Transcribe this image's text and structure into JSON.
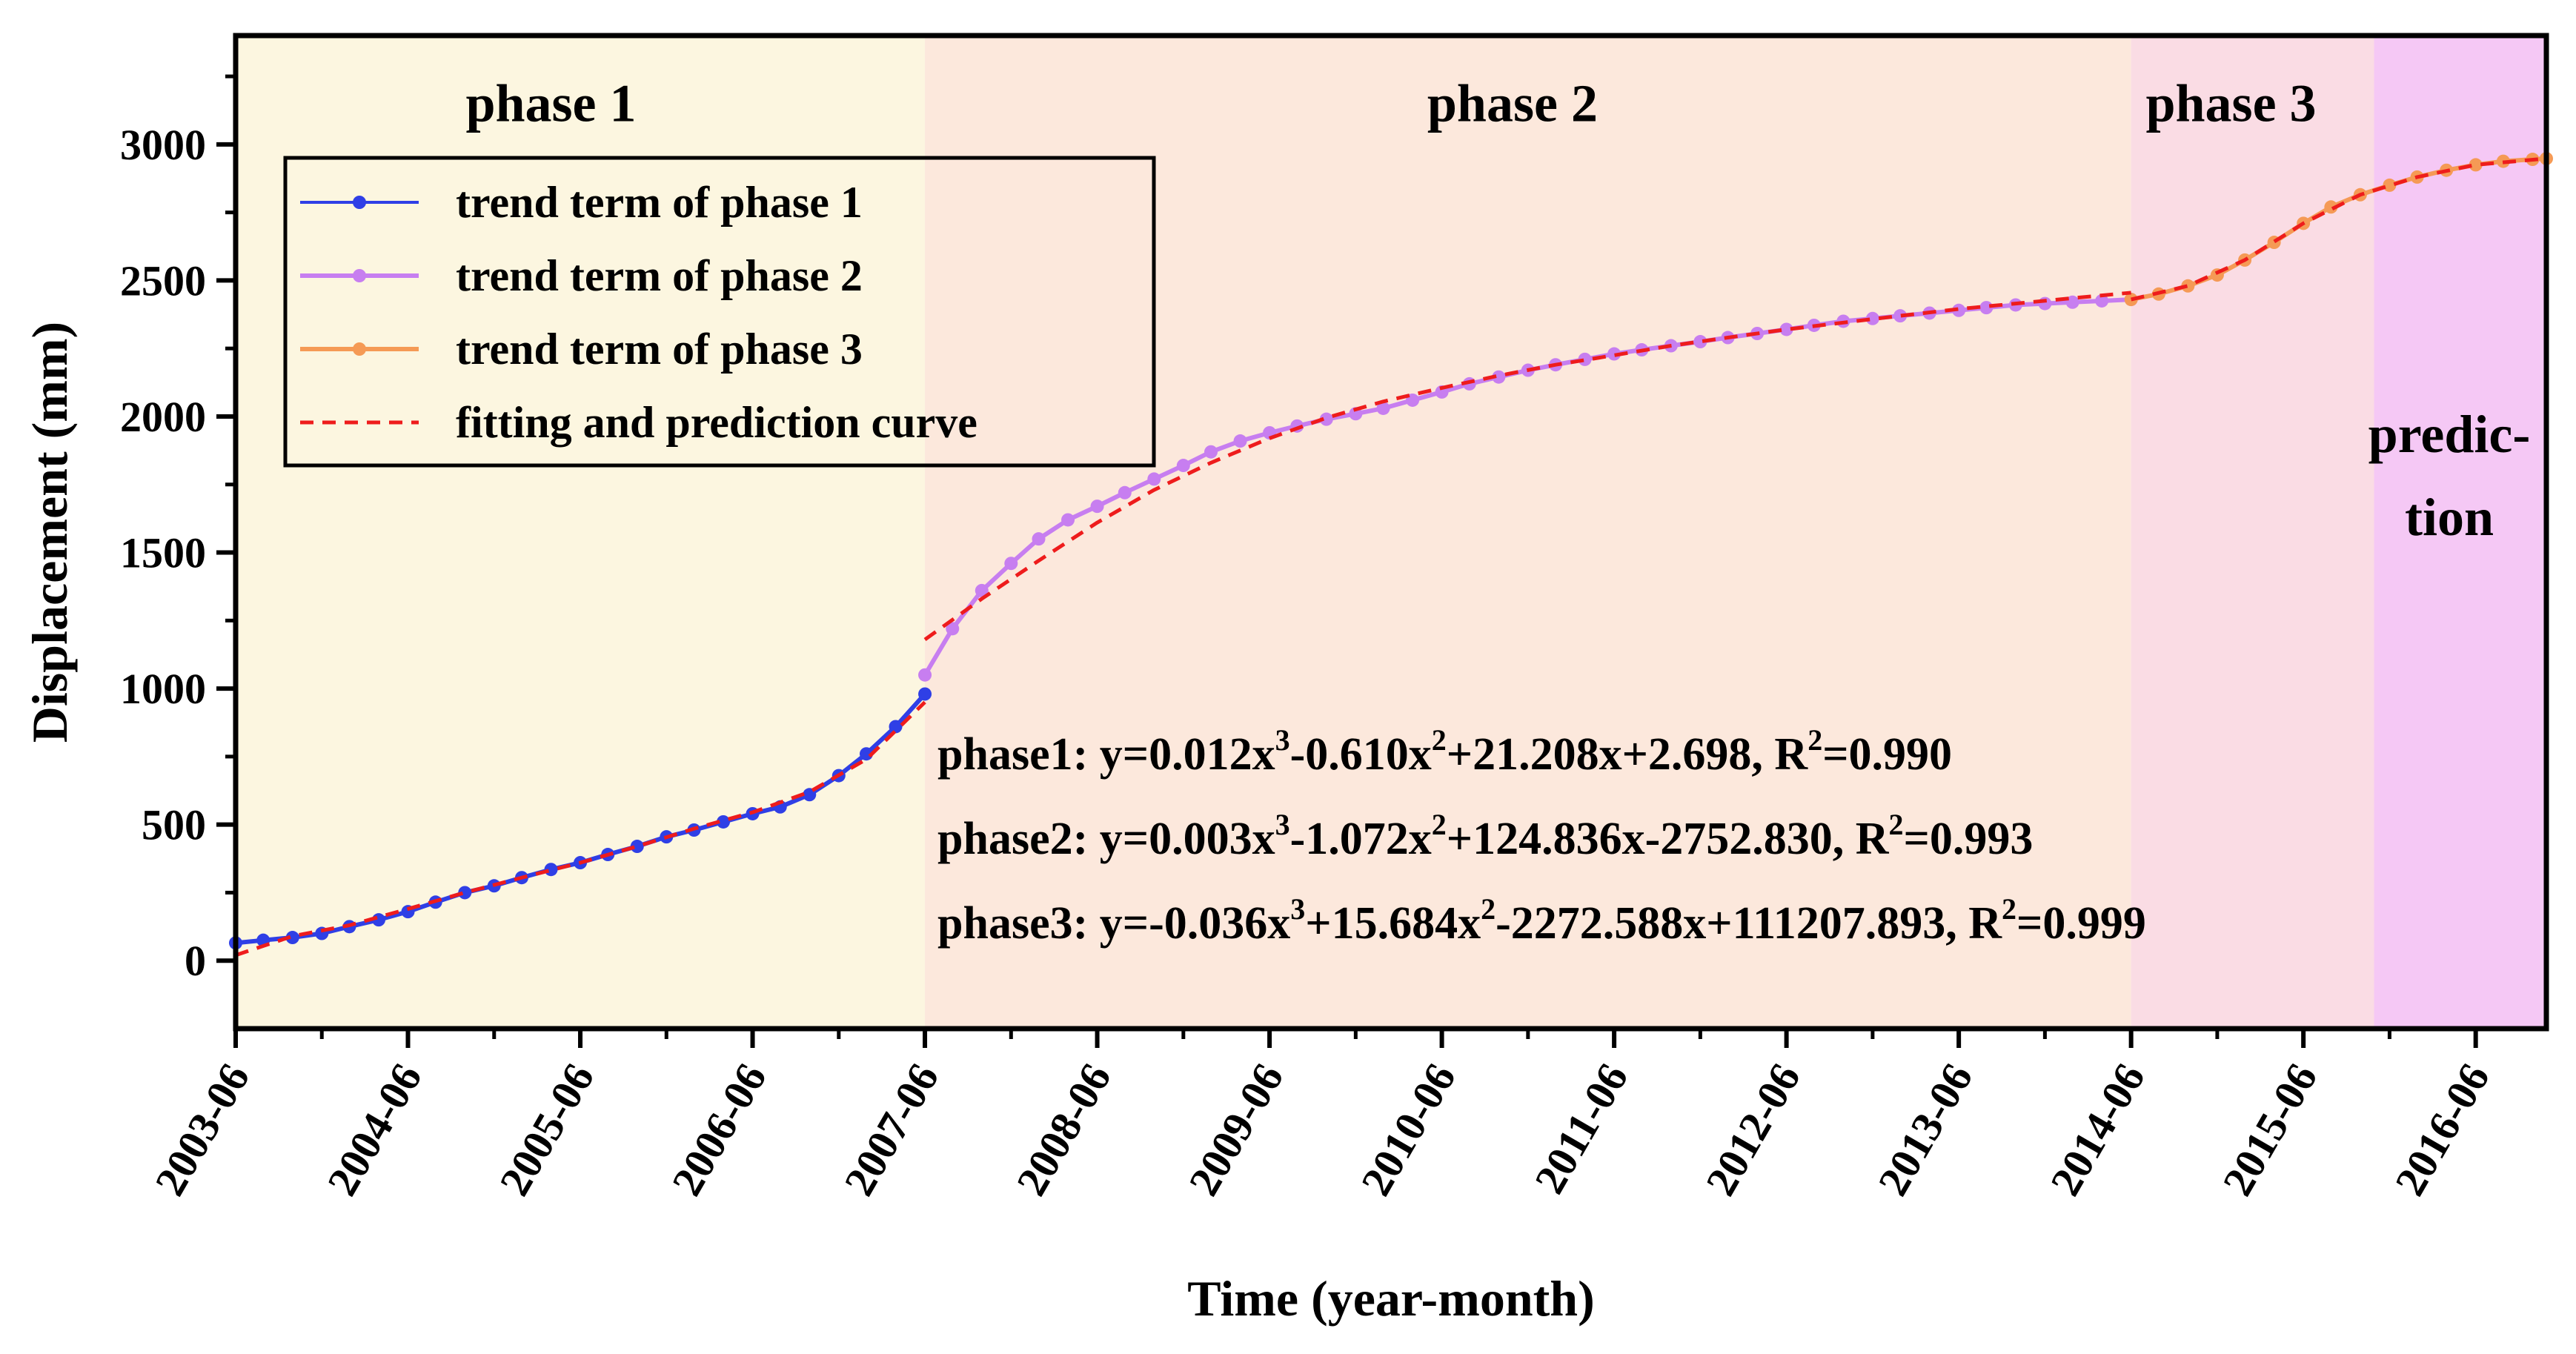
{
  "chart_data": {
    "type": "line",
    "title": "",
    "xlabel": "Time (year-month)",
    "ylabel": "Displacement (mm)",
    "xlim": [
      2003.42,
      2016.83
    ],
    "ylim": [
      -250,
      3400
    ],
    "x_ticks": [
      2003.42,
      2004.42,
      2005.42,
      2006.42,
      2007.42,
      2008.42,
      2009.42,
      2010.42,
      2011.42,
      2012.42,
      2013.42,
      2014.42,
      2015.42,
      2016.42
    ],
    "x_tick_labels": [
      "2003-06",
      "2004-06",
      "2005-06",
      "2006-06",
      "2007-06",
      "2008-06",
      "2009-06",
      "2010-06",
      "2011-06",
      "2012-06",
      "2013-06",
      "2014-06",
      "2015-06",
      "2016-06"
    ],
    "y_ticks": [
      0,
      500,
      1000,
      1500,
      2000,
      2500,
      3000
    ],
    "y_tick_labels": [
      "0",
      "500",
      "1000",
      "1500",
      "2000",
      "2500",
      "3000"
    ],
    "regions": [
      {
        "name": "phase 1",
        "x_start": 2003.42,
        "x_end": 2007.42,
        "color": "#fcf6e0"
      },
      {
        "name": "phase 2",
        "x_start": 2007.42,
        "x_end": 2014.42,
        "color": "#fce8dc"
      },
      {
        "name": "phase 3",
        "x_start": 2014.42,
        "x_end": 2015.83,
        "color": "#fadce4"
      },
      {
        "name": "prediction",
        "x_start": 2015.83,
        "x_end": 2016.83,
        "color": "#f5c8f5"
      }
    ],
    "phase_labels": [
      {
        "text": "phase 1",
        "x": 2005.25,
        "y": 3140
      },
      {
        "text": "phase 2",
        "x": 2010.83,
        "y": 3140
      },
      {
        "text": "phase 3",
        "x": 2015.0,
        "y": 3140
      }
    ],
    "prediction_label": [
      "predic-",
      "tion"
    ],
    "series": [
      {
        "name": "trend term of phase 1",
        "color": "#2f3fe6",
        "x": [
          2003.42,
          2003.58,
          2003.75,
          2003.92,
          2004.08,
          2004.25,
          2004.42,
          2004.58,
          2004.75,
          2004.92,
          2005.08,
          2005.25,
          2005.42,
          2005.58,
          2005.75,
          2005.92,
          2006.08,
          2006.25,
          2006.42,
          2006.58,
          2006.75,
          2006.92,
          2007.08,
          2007.25,
          2007.42
        ],
        "y": [
          65,
          75,
          85,
          100,
          125,
          150,
          180,
          215,
          250,
          275,
          305,
          335,
          360,
          390,
          420,
          455,
          480,
          510,
          540,
          565,
          610,
          680,
          760,
          860,
          980
        ]
      },
      {
        "name": "trend term of phase 2",
        "color": "#c77ef0",
        "x": [
          2007.42,
          2007.58,
          2007.75,
          2007.92,
          2008.08,
          2008.25,
          2008.42,
          2008.58,
          2008.75,
          2008.92,
          2009.08,
          2009.25,
          2009.42,
          2009.58,
          2009.75,
          2009.92,
          2010.08,
          2010.25,
          2010.42,
          2010.58,
          2010.75,
          2010.92,
          2011.08,
          2011.25,
          2011.42,
          2011.58,
          2011.75,
          2011.92,
          2012.08,
          2012.25,
          2012.42,
          2012.58,
          2012.75,
          2012.92,
          2013.08,
          2013.25,
          2013.42,
          2013.58,
          2013.75,
          2013.92,
          2014.08,
          2014.25,
          2014.42
        ],
        "y": [
          1050,
          1220,
          1360,
          1460,
          1550,
          1620,
          1670,
          1720,
          1770,
          1820,
          1870,
          1910,
          1940,
          1965,
          1990,
          2010,
          2030,
          2060,
          2090,
          2120,
          2145,
          2170,
          2190,
          2210,
          2230,
          2245,
          2260,
          2275,
          2290,
          2305,
          2320,
          2335,
          2350,
          2360,
          2370,
          2380,
          2390,
          2400,
          2410,
          2415,
          2420,
          2425,
          2430
        ]
      },
      {
        "name": "trend term of phase 3",
        "color": "#f59a55",
        "x": [
          2014.42,
          2014.58,
          2014.75,
          2014.92,
          2015.08,
          2015.25,
          2015.42,
          2015.58,
          2015.75,
          2015.92,
          2016.08,
          2016.25,
          2016.42,
          2016.58,
          2016.75,
          2016.83
        ],
        "y": [
          2430,
          2450,
          2480,
          2520,
          2575,
          2640,
          2710,
          2770,
          2815,
          2850,
          2880,
          2905,
          2925,
          2938,
          2945,
          2948
        ]
      }
    ],
    "fit_curve": {
      "name": "fitting and prediction curve",
      "color": "#ee1c1c",
      "segments": [
        {
          "x": [
            2003.42,
            2003.75,
            2004.08,
            2004.42,
            2004.75,
            2005.08,
            2005.42,
            2005.75,
            2006.08,
            2006.42,
            2006.75,
            2007.08,
            2007.42
          ],
          "y": [
            20,
            90,
            130,
            190,
            250,
            305,
            360,
            420,
            485,
            545,
            620,
            740,
            950
          ]
        },
        {
          "x": [
            2007.42,
            2007.75,
            2008.08,
            2008.42,
            2008.75,
            2009.08,
            2009.42,
            2009.75,
            2010.08,
            2010.42,
            2010.75,
            2011.08,
            2011.42,
            2011.75,
            2012.08,
            2012.42,
            2012.75,
            2013.08,
            2013.42,
            2013.75,
            2014.08,
            2014.42
          ],
          "y": [
            1180,
            1330,
            1470,
            1610,
            1730,
            1830,
            1920,
            1995,
            2055,
            2105,
            2150,
            2190,
            2225,
            2260,
            2290,
            2320,
            2345,
            2370,
            2395,
            2415,
            2435,
            2455
          ]
        },
        {
          "x": [
            2014.42,
            2014.75,
            2015.08,
            2015.42,
            2015.75,
            2016.08,
            2016.42,
            2016.83
          ],
          "y": [
            2430,
            2480,
            2575,
            2710,
            2815,
            2880,
            2925,
            2948
          ]
        }
      ]
    },
    "legend": {
      "placement": "top-left",
      "entries": [
        "trend term of phase 1",
        "trend term of phase 2",
        "trend term of phase 3",
        "fitting and prediction curve"
      ]
    },
    "equations": [
      {
        "label": "phase1: ",
        "eq_prefix": "y=0.012x",
        "sup1": "3",
        "eq_mid": "-0.610x",
        "sup2": "2",
        "eq_tail": "+21.208x+2.698, R",
        "sup3": "2",
        "r2": "=0.990"
      },
      {
        "label": "phase2: ",
        "eq_prefix": "y=0.003x",
        "sup1": "3",
        "eq_mid": "-1.072x",
        "sup2": "2",
        "eq_tail": "+124.836x-2752.830, R",
        "sup3": "2",
        "r2": "=0.993"
      },
      {
        "label": "phase3: ",
        "eq_prefix": "y=-0.036x",
        "sup1": "3",
        "eq_mid": "+15.684x",
        "sup2": "2",
        "eq_tail": "-2272.588x+111207.893, R",
        "sup3": "2",
        "r2": "=0.999"
      }
    ],
    "grid": false
  }
}
